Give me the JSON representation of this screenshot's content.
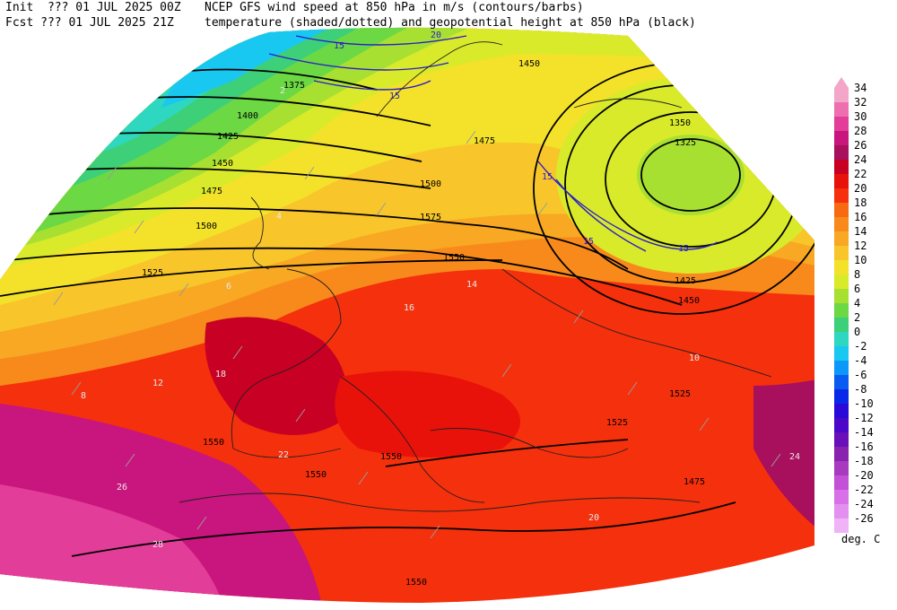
{
  "header": {
    "line1_left": "Init  ??? 01 JUL 2025 00Z",
    "line1_right": "NCEP GFS wind speed at 850 hPa in m/s (contours/barbs)",
    "line2_left": "Fcst ??? 01 JUL 2025 21Z",
    "line2_right": "temperature (shaded/dotted) and geopotential height at 850 hPa (black)"
  },
  "legend": {
    "unit": "deg. C",
    "entries": [
      {
        "label": "34",
        "color": "#f4a6c8"
      },
      {
        "label": "32",
        "color": "#ee6fb0"
      },
      {
        "label": "30",
        "color": "#e23d98"
      },
      {
        "label": "28",
        "color": "#c9157e"
      },
      {
        "label": "26",
        "color": "#a80f5c"
      },
      {
        "label": "24",
        "color": "#c80024"
      },
      {
        "label": "22",
        "color": "#e8120a"
      },
      {
        "label": "20",
        "color": "#f5300c"
      },
      {
        "label": "18",
        "color": "#f86a12"
      },
      {
        "label": "16",
        "color": "#f88a1c"
      },
      {
        "label": "14",
        "color": "#f8a822"
      },
      {
        "label": "12",
        "color": "#f8c62a"
      },
      {
        "label": "10",
        "color": "#f4e22a"
      },
      {
        "label": "8",
        "color": "#d8ea2a"
      },
      {
        "label": "6",
        "color": "#a8e032"
      },
      {
        "label": "4",
        "color": "#6cd844"
      },
      {
        "label": "2",
        "color": "#3ed078"
      },
      {
        "label": "0",
        "color": "#2ed8c0"
      },
      {
        "label": "-2",
        "color": "#18c8f0"
      },
      {
        "label": "-4",
        "color": "#0c98f8"
      },
      {
        "label": "-6",
        "color": "#0a5cf0"
      },
      {
        "label": "-8",
        "color": "#0a28e8"
      },
      {
        "label": "-10",
        "color": "#2a0ad8"
      },
      {
        "label": "-12",
        "color": "#4c08c8"
      },
      {
        "label": "-14",
        "color": "#6a10b8"
      },
      {
        "label": "-16",
        "color": "#8a22b0"
      },
      {
        "label": "-18",
        "color": "#a83ac0"
      },
      {
        "label": "-20",
        "color": "#c450d8"
      },
      {
        "label": "-22",
        "color": "#d870e8"
      },
      {
        "label": "-24",
        "color": "#e490f0"
      },
      {
        "label": "-26",
        "color": "#f0b4f6"
      }
    ]
  },
  "map": {
    "height_labels": [
      "1375",
      "1400",
      "1425",
      "1450",
      "1475",
      "1500",
      "1525",
      "1550",
      "1575",
      "1350",
      "1325",
      "1450",
      "1425",
      "1475",
      "1500",
      "1525",
      "1550",
      "1550",
      "1550",
      "1550",
      "1525",
      "1475",
      "1450"
    ],
    "wind_labels": [
      "15",
      "15",
      "20",
      "15",
      "15",
      "15"
    ],
    "temp_labels": [
      "2",
      "4",
      "6",
      "8",
      "10",
      "12",
      "14",
      "16",
      "18",
      "20",
      "22",
      "24",
      "26",
      "28"
    ]
  }
}
